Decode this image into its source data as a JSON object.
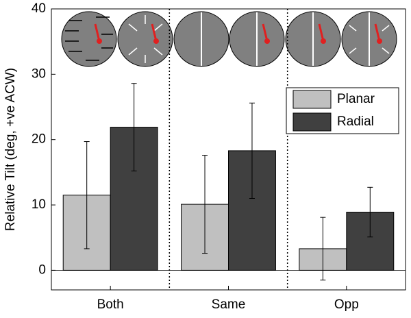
{
  "chart_data": {
    "type": "bar",
    "ylabel": "Relative Tilt (deg, +ve ACW)",
    "categories": [
      "Both",
      "Same",
      "Opp"
    ],
    "series": [
      {
        "name": "Planar",
        "color": "#c0c0c0",
        "values": [
          11.5,
          10.1,
          3.3
        ],
        "errors": [
          8.2,
          7.5,
          4.8
        ]
      },
      {
        "name": "Radial",
        "color": "#404040",
        "values": [
          21.9,
          18.3,
          8.9
        ],
        "errors": [
          6.7,
          7.3,
          3.8
        ]
      }
    ],
    "ylim": [
      -3,
      40
    ],
    "yticks": [
      0,
      10,
      20,
      30,
      40
    ],
    "legend": "upper right"
  }
}
